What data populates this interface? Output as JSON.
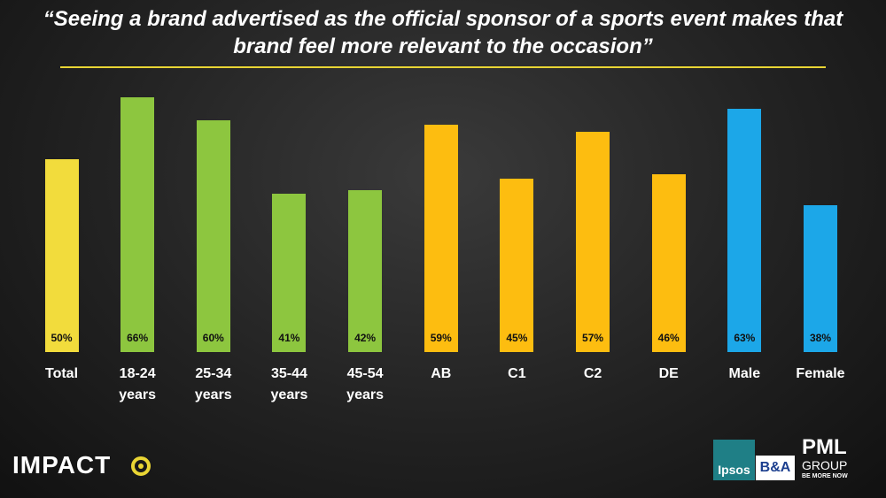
{
  "chart_data": {
    "type": "bar",
    "title": "“Seeing a brand advertised as the official sponsor of a sports event makes that brand feel more relevant to the occasion”",
    "categories": [
      "Total",
      "18-24 years",
      "25-34 years",
      "35-44 years",
      "45-54 years",
      "AB",
      "C1",
      "C2",
      "DE",
      "Male",
      "Female"
    ],
    "values": [
      50,
      66,
      60,
      41,
      42,
      59,
      45,
      57,
      46,
      63,
      38
    ],
    "value_labels": [
      "50%",
      "66%",
      "60%",
      "41%",
      "42%",
      "59%",
      "45%",
      "57%",
      "46%",
      "63%",
      "38%"
    ],
    "colors": [
      "#f2dc3c",
      "#8dc63f",
      "#8dc63f",
      "#8dc63f",
      "#8dc63f",
      "#fdbd10",
      "#fdbd10",
      "#fdbd10",
      "#fdbd10",
      "#1ca7e8",
      "#1ca7e8"
    ]
  },
  "logos": {
    "left": "IMPACT",
    "ipsos": "Ipsos",
    "ba": "B&A",
    "pml": "PML",
    "group": "GROUP",
    "tagline": "BE MORE NOW"
  }
}
